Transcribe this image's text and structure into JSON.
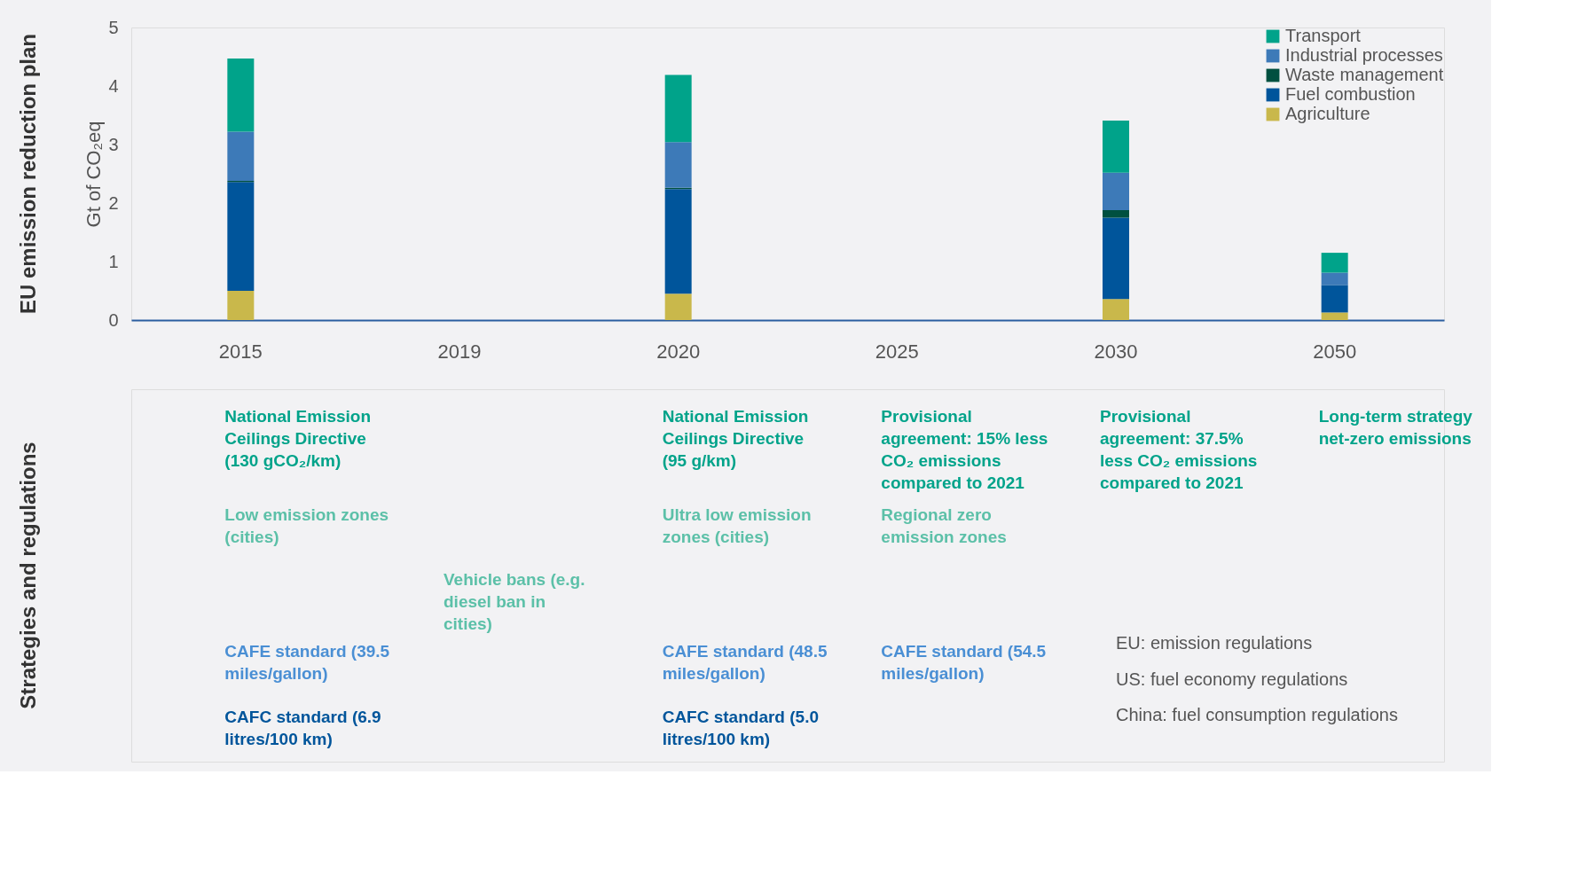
{
  "chart_data": {
    "type": "bar",
    "stacked": true,
    "ylabel": "Gt of CO₂eq",
    "categories": [
      "2015",
      "2019",
      "2020",
      "2025",
      "2030",
      "2050"
    ],
    "series": [
      {
        "name": "Agriculture",
        "color": "#c9b84b",
        "values": [
          0.5,
          null,
          0.45,
          null,
          0.36,
          0.13
        ]
      },
      {
        "name": "Fuel combustion",
        "color": "#00559b",
        "values": [
          1.86,
          null,
          1.79,
          null,
          1.39,
          0.47
        ]
      },
      {
        "name": "Waste management",
        "color": "#005040",
        "values": [
          0.02,
          null,
          0.02,
          null,
          0.13,
          0
        ]
      },
      {
        "name": "Industrial processes",
        "color": "#3d7ab8",
        "values": [
          0.84,
          null,
          0.78,
          null,
          0.64,
          0.21
        ]
      },
      {
        "name": "Transport",
        "color": "#00a38a",
        "values": [
          1.25,
          null,
          1.15,
          null,
          0.89,
          0.34
        ]
      }
    ],
    "ylim": [
      0,
      5
    ],
    "yticks": [
      0,
      1,
      2,
      3,
      4,
      5
    ],
    "grid": false,
    "legend": "top right",
    "annotations": [
      "EU emission reduction plan",
      "Strategies and regulations",
      "National Emission Ceilings Directive (130 gCO₂/km)",
      "Low emission zones (cities)",
      "CAFE standard (39.5 miles/gallon)",
      "CAFC standard (6.9 litres/100 km)",
      "Vehicle bans (e.g. diesel ban in cities)",
      "National Emission Ceilings Directive (95 g/km)",
      "Ultra low emission zones (cities)",
      "CAFE standard (48.5 miles/gallon)",
      "CAFC standard (5.0 litres/100 km)",
      "Provisional agreement: 15% less CO₂ emissions compared to 2021",
      "Regional zero emission zones",
      "CAFE standard (54.5 miles/gallon)",
      "Provisional agreement: 37.5% less CO₂ emissions compared to 2021",
      "Long-term strategy net-zero emissions",
      "EU: emission regulations",
      "US: fuel economy regulations",
      "China: fuel consumption regulations"
    ]
  }
}
